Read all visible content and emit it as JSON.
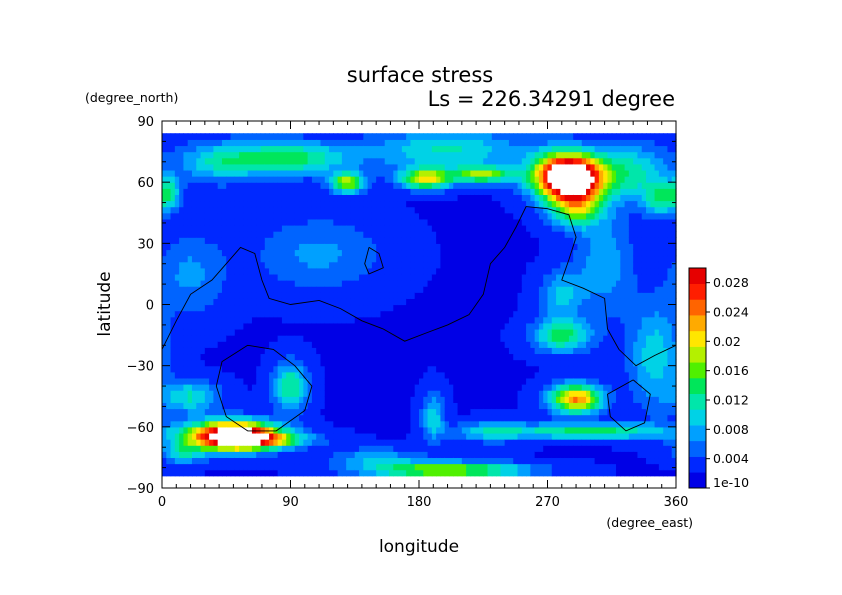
{
  "chart_data": {
    "type": "heatmap",
    "title": "surface stress",
    "subtitle": "Ls = 226.34291 degree",
    "xlabel": "longitude",
    "ylabel": "latitude",
    "x_unit": "(degree_east)",
    "y_unit": "(degree_north)",
    "xlim": [
      0,
      360
    ],
    "ylim": [
      -90,
      90
    ],
    "x_ticks": [
      "0",
      "90",
      "180",
      "270",
      "360"
    ],
    "y_ticks": [
      "90",
      "60",
      "30",
      "0",
      "−30",
      "−60",
      "−90"
    ],
    "colorbar": {
      "min": 1e-10,
      "max": 0.03,
      "labels": [
        "0.028",
        "0.024",
        "0.02",
        "0.016",
        "0.012",
        "0.008",
        "0.004",
        "1e-10"
      ],
      "label_values": [
        0.028,
        0.024,
        0.02,
        0.016,
        0.012,
        0.008,
        0.004,
        0
      ],
      "colors": [
        "#0000e6",
        "#0028ff",
        "#0064ff",
        "#00a0ff",
        "#00d2e6",
        "#00e6aa",
        "#00e65a",
        "#50f000",
        "#b4f000",
        "#ffe600",
        "#ffaa00",
        "#ff6400",
        "#ff1e00",
        "#e60000"
      ],
      "saturated_color": "#ffffff"
    },
    "background_value": 0.002,
    "features": [
      {
        "lon": 285,
        "lat": 63,
        "rlon": 24,
        "rlat": 11,
        "value": 0.04
      },
      {
        "lon": 290,
        "lat": 48,
        "rlon": 18,
        "rlat": 10,
        "value": 0.014
      },
      {
        "lon": 50,
        "lat": -64,
        "rlon": 30,
        "rlat": 7,
        "value": 0.035
      },
      {
        "lon": 70,
        "lat": -66,
        "rlon": 35,
        "rlat": 4,
        "value": 0.012
      },
      {
        "lon": 290,
        "lat": -46,
        "rlon": 18,
        "rlat": 7,
        "value": 0.022
      },
      {
        "lon": 300,
        "lat": -62,
        "rlon": 55,
        "rlat": 4,
        "value": 0.012
      },
      {
        "lon": 200,
        "lat": -81,
        "rlon": 55,
        "rlat": 4,
        "value": 0.016
      },
      {
        "lon": 185,
        "lat": 62,
        "rlon": 18,
        "rlat": 5,
        "value": 0.018
      },
      {
        "lon": 225,
        "lat": 64,
        "rlon": 20,
        "rlat": 4,
        "value": 0.015
      },
      {
        "lon": 130,
        "lat": 60,
        "rlon": 12,
        "rlat": 5,
        "value": 0.016
      },
      {
        "lon": 90,
        "lat": 72,
        "rlon": 40,
        "rlat": 8,
        "value": 0.012
      },
      {
        "lon": 200,
        "lat": 76,
        "rlon": 55,
        "rlat": 10,
        "value": 0.009
      },
      {
        "lon": 40,
        "lat": 70,
        "rlon": 30,
        "rlat": 10,
        "value": 0.008
      },
      {
        "lon": 330,
        "lat": 65,
        "rlon": 25,
        "rlat": 14,
        "value": 0.009
      },
      {
        "lon": 90,
        "lat": -40,
        "rlon": 12,
        "rlat": 12,
        "value": 0.011
      },
      {
        "lon": 20,
        "lat": -45,
        "rlon": 20,
        "rlat": 8,
        "value": 0.009
      },
      {
        "lon": 280,
        "lat": -15,
        "rlon": 20,
        "rlat": 8,
        "value": 0.012
      },
      {
        "lon": 280,
        "lat": 5,
        "rlon": 15,
        "rlat": 12,
        "value": 0.007
      },
      {
        "lon": 190,
        "lat": -55,
        "rlon": 8,
        "rlat": 12,
        "value": 0.008
      },
      {
        "lon": 310,
        "lat": 20,
        "rlon": 20,
        "rlat": 25,
        "value": 0.006
      },
      {
        "lon": 345,
        "lat": -25,
        "rlon": 18,
        "rlat": 25,
        "value": 0.008
      },
      {
        "lon": 20,
        "lat": 15,
        "rlon": 25,
        "rlat": 20,
        "value": 0.005
      },
      {
        "lon": 110,
        "lat": 25,
        "rlon": 45,
        "rlat": 18,
        "value": 0.005
      },
      {
        "lon": 350,
        "lat": 52,
        "rlon": 12,
        "rlat": 8,
        "value": 0.01
      },
      {
        "lon": 15,
        "lat": -72,
        "rlon": 15,
        "rlat": 6,
        "value": 0.008
      },
      {
        "lon": 230,
        "lat": -62,
        "rlon": 25,
        "rlat": 5,
        "value": 0.007
      },
      {
        "lon": 150,
        "lat": -75,
        "rlon": 30,
        "rlat": 5,
        "value": 0.006
      },
      {
        "lon": 5,
        "lat": 55,
        "rlon": 8,
        "rlat": 8,
        "value": 0.009
      }
    ],
    "contour_lines": [
      {
        "points": [
          [
            0,
            -22
          ],
          [
            10,
            -8
          ],
          [
            20,
            5
          ],
          [
            35,
            12
          ],
          [
            45,
            20
          ],
          [
            55,
            28
          ],
          [
            65,
            25
          ],
          [
            70,
            12
          ],
          [
            75,
            3
          ],
          [
            90,
            0
          ],
          [
            110,
            2
          ],
          [
            125,
            -2
          ],
          [
            140,
            -8
          ],
          [
            155,
            -12
          ],
          [
            170,
            -18
          ],
          [
            185,
            -14
          ],
          [
            200,
            -10
          ],
          [
            215,
            -5
          ],
          [
            225,
            5
          ],
          [
            230,
            20
          ],
          [
            240,
            28
          ],
          [
            248,
            38
          ],
          [
            255,
            48
          ],
          [
            270,
            47
          ],
          [
            285,
            44
          ],
          [
            290,
            33
          ],
          [
            285,
            22
          ],
          [
            280,
            12
          ],
          [
            295,
            8
          ],
          [
            310,
            3
          ],
          [
            312,
            -12
          ],
          [
            320,
            -22
          ],
          [
            332,
            -30
          ],
          [
            345,
            -25
          ],
          [
            360,
            -20
          ]
        ]
      },
      {
        "points": [
          [
            60,
            -20
          ],
          [
            78,
            -22
          ],
          [
            93,
            -30
          ],
          [
            105,
            -40
          ],
          [
            100,
            -52
          ],
          [
            80,
            -62
          ],
          [
            60,
            -62
          ],
          [
            45,
            -55
          ],
          [
            38,
            -40
          ],
          [
            42,
            -28
          ],
          [
            60,
            -20
          ]
        ]
      },
      {
        "points": [
          [
            145,
            28
          ],
          [
            152,
            25
          ],
          [
            155,
            18
          ],
          [
            145,
            15
          ],
          [
            142,
            20
          ],
          [
            145,
            28
          ]
        ]
      },
      {
        "points": [
          [
            330,
            -37
          ],
          [
            342,
            -44
          ],
          [
            338,
            -58
          ],
          [
            325,
            -62
          ],
          [
            314,
            -55
          ],
          [
            312,
            -44
          ],
          [
            330,
            -37
          ]
        ]
      }
    ]
  }
}
